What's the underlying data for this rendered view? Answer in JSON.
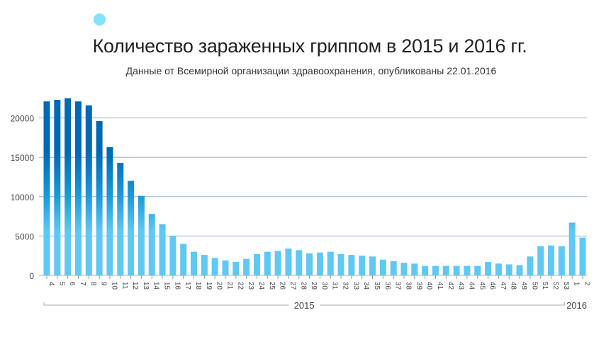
{
  "chart_data": {
    "type": "bar",
    "title": "Количество зараженных гриппом в 2015 и 2016 гг.",
    "subtitle": "Данные от Всемирной организации здравоохранения, опубликованы 22.01.2016",
    "categories": [
      "4",
      "5",
      "6",
      "7",
      "8",
      "9",
      "10",
      "11",
      "12",
      "13",
      "14",
      "15",
      "16",
      "17",
      "18",
      "19",
      "20",
      "21",
      "22",
      "23",
      "24",
      "25",
      "26",
      "27",
      "28",
      "29",
      "30",
      "31",
      "32",
      "33",
      "34",
      "35",
      "36",
      "37",
      "38",
      "39",
      "40",
      "41",
      "42",
      "43",
      "44",
      "45",
      "46",
      "47",
      "48",
      "49",
      "50",
      "51",
      "52",
      "53",
      "1",
      "2"
    ],
    "values": [
      22100,
      22300,
      22500,
      22100,
      21600,
      19600,
      16300,
      14300,
      12000,
      10100,
      7800,
      6500,
      5000,
      4000,
      3000,
      2600,
      2200,
      1900,
      1700,
      2100,
      2700,
      3000,
      3100,
      3400,
      3200,
      2800,
      2900,
      3000,
      2700,
      2600,
      2500,
      2400,
      2000,
      1800,
      1600,
      1500,
      1200,
      1200,
      1200,
      1200,
      1200,
      1200,
      1700,
      1500,
      1400,
      1300,
      2400,
      3700,
      3800,
      3700,
      6700,
      4800
    ],
    "yticks": [
      "0",
      "5000",
      "10000",
      "15000",
      "20000"
    ],
    "ylim": [
      0,
      25000
    ],
    "grid": true,
    "groups": [
      {
        "label": "2015",
        "count": 50
      },
      {
        "label": "2016",
        "count": 2
      }
    ],
    "colors": {
      "top": "#0069b4",
      "bottom": "#5fc8f3",
      "grid": "#9fb3c3"
    }
  }
}
